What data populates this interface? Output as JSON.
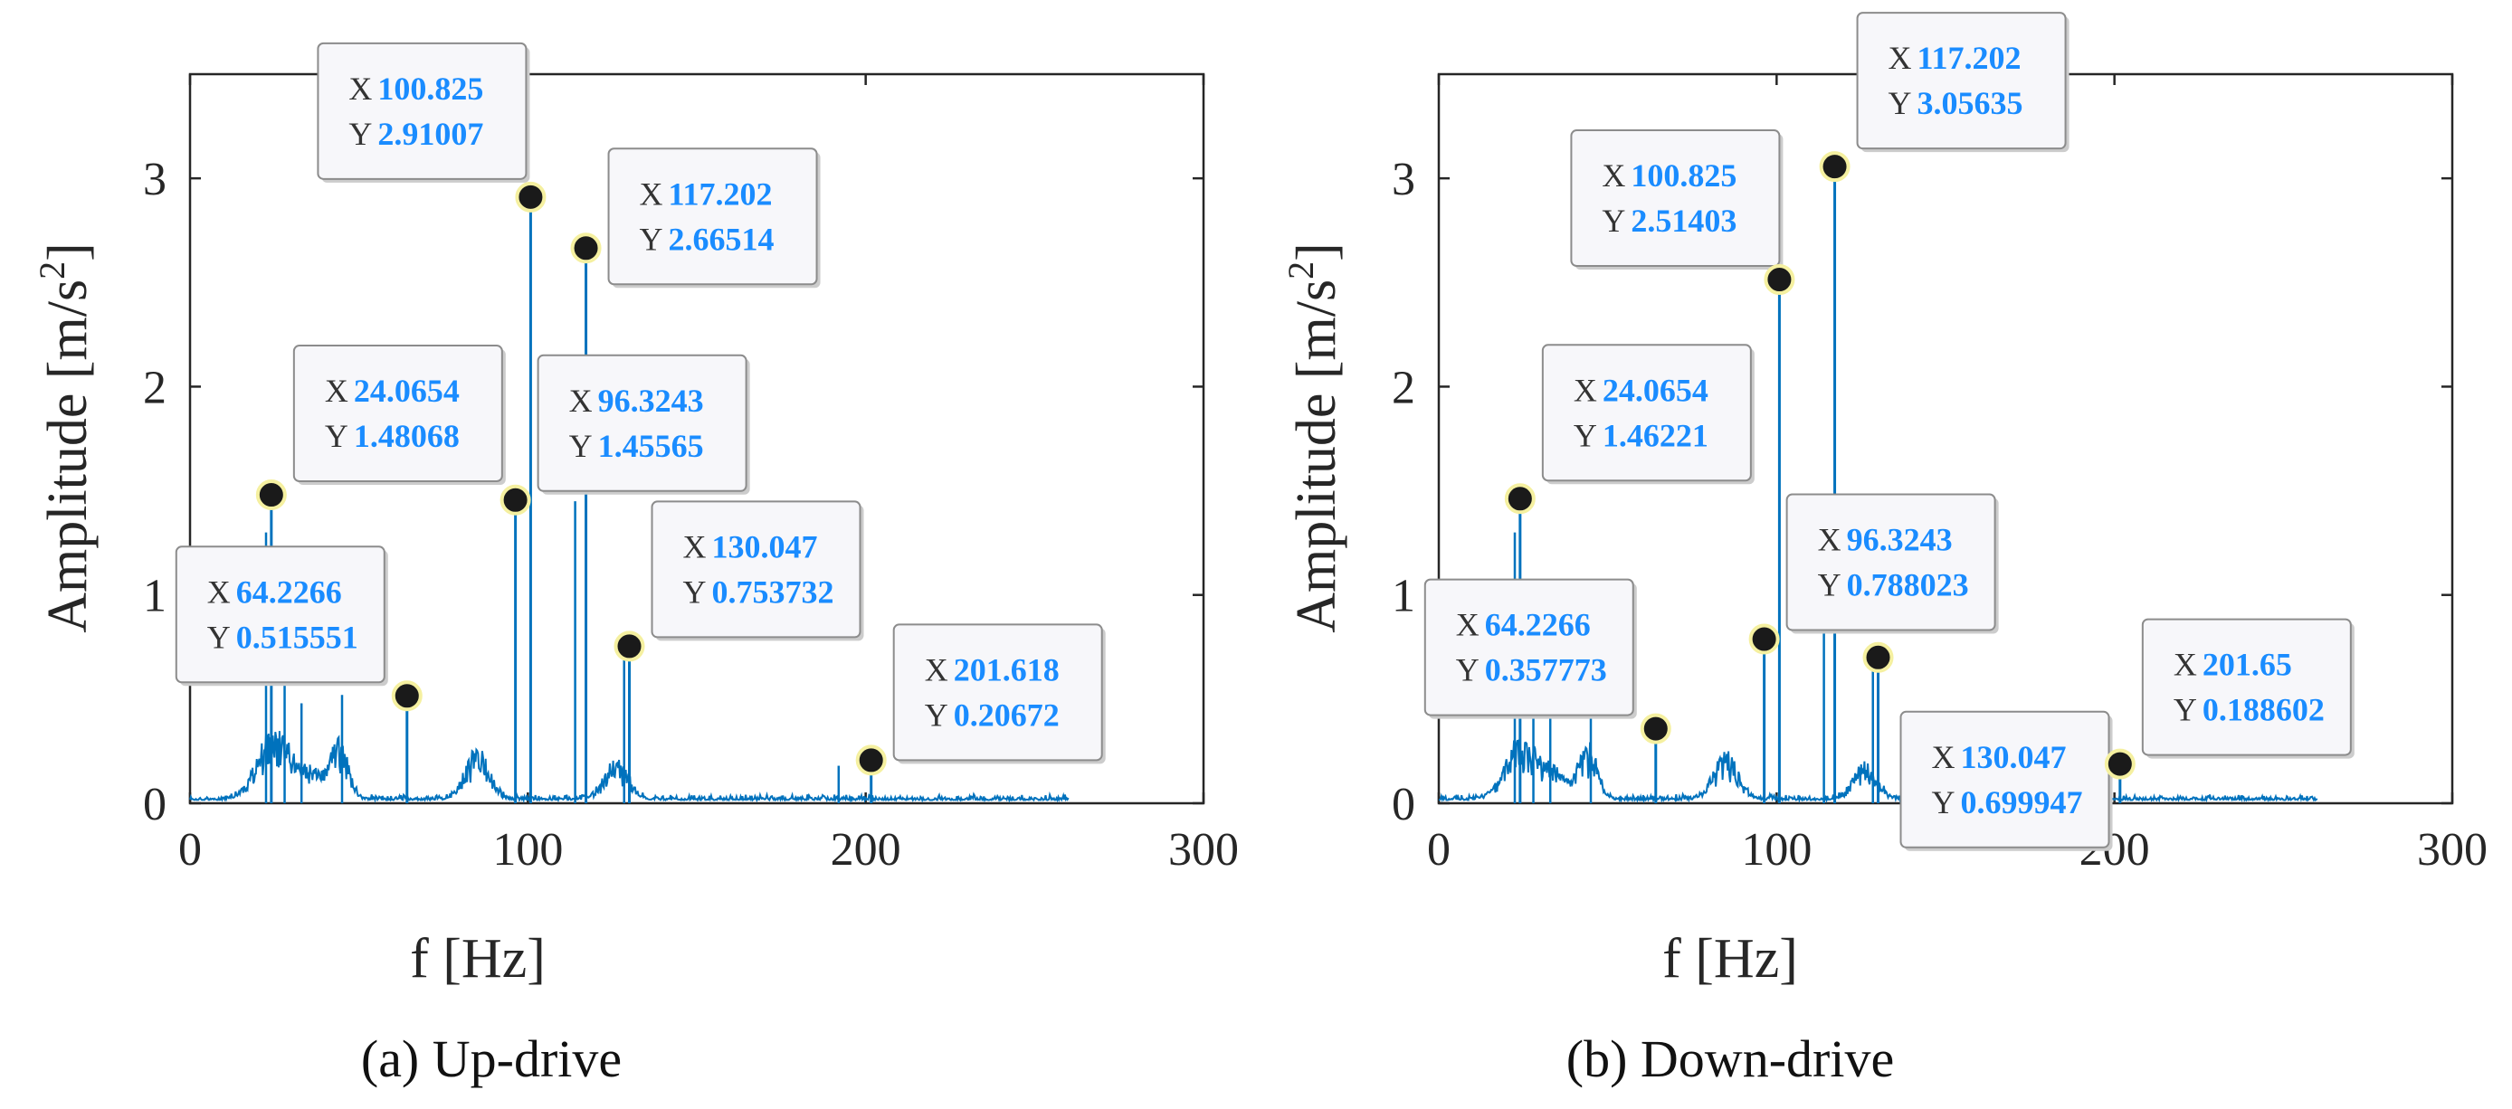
{
  "chart_data": [
    {
      "type": "line",
      "caption": "(a) Up-drive",
      "xlabel": "f [Hz]",
      "ylabel": "Amplitude [m/s",
      "ylabel_exp": "2",
      "ylabel_close": "]",
      "xlim": [
        0,
        300
      ],
      "ylim": [
        0,
        3.5
      ],
      "xticks": [
        0,
        100,
        200,
        300
      ],
      "xtick_labels": [
        "0",
        "100",
        "200",
        "300"
      ],
      "yticks": [
        0,
        1,
        2,
        3
      ],
      "ytick_labels": [
        "0",
        "1",
        "2",
        "3"
      ],
      "series_color": "#0072BD",
      "peaks": [
        {
          "x": 24.0654,
          "y": 1.48068,
          "x_label": "24.0654",
          "y_label": "1.48068"
        },
        {
          "x": 64.2266,
          "y": 0.515551,
          "x_label": "64.2266",
          "y_label": "0.515551"
        },
        {
          "x": 96.3243,
          "y": 1.45565,
          "x_label": "96.3243",
          "y_label": "1.45565"
        },
        {
          "x": 100.825,
          "y": 2.91007,
          "x_label": "100.825",
          "y_label": "2.91007"
        },
        {
          "x": 117.202,
          "y": 2.66514,
          "x_label": "117.202",
          "y_label": "2.66514"
        },
        {
          "x": 130.047,
          "y": 0.753732,
          "x_label": "130.047",
          "y_label": "0.753732"
        },
        {
          "x": 201.618,
          "y": 0.20672,
          "x_label": "201.618",
          "y_label": "0.20672"
        }
      ],
      "extra_lines": [
        {
          "x": 22.5,
          "y": 1.3
        },
        {
          "x": 114.0,
          "y": 1.45
        },
        {
          "x": 128.5,
          "y": 0.72
        },
        {
          "x": 45.0,
          "y": 0.52
        },
        {
          "x": 33.0,
          "y": 0.48
        },
        {
          "x": 28.0,
          "y": 0.62
        },
        {
          "x": 192.0,
          "y": 0.18
        }
      ],
      "bumps": [
        {
          "center": 25,
          "height": 0.36,
          "width": 7
        },
        {
          "center": 44,
          "height": 0.3,
          "width": 4
        },
        {
          "center": 85,
          "height": 0.26,
          "width": 5
        },
        {
          "center": 126,
          "height": 0.2,
          "width": 5
        },
        {
          "center": 35,
          "height": 0.14,
          "width": 5
        }
      ],
      "x_end": 260,
      "tooltips": [
        {
          "peak": 3,
          "side": "left"
        },
        {
          "peak": 4,
          "side": "right"
        },
        {
          "peak": 0,
          "side": "right"
        },
        {
          "peak": 2,
          "side": "right"
        },
        {
          "peak": 1,
          "side": "left"
        },
        {
          "peak": 5,
          "side": "right"
        },
        {
          "peak": 6,
          "side": "right"
        }
      ],
      "tooltip_x_key": "X",
      "tooltip_y_key": "Y"
    },
    {
      "type": "line",
      "caption": "(b) Down-drive",
      "xlabel": "f [Hz]",
      "ylabel": "Amplitude [m/s",
      "ylabel_exp": "2",
      "ylabel_close": "]",
      "xlim": [
        0,
        300
      ],
      "ylim": [
        0,
        3.5
      ],
      "xticks": [
        0,
        100,
        200,
        300
      ],
      "xtick_labels": [
        "0",
        "100",
        "200",
        "300"
      ],
      "yticks": [
        0,
        1,
        2,
        3
      ],
      "ytick_labels": [
        "0",
        "1",
        "2",
        "3"
      ],
      "series_color": "#0072BD",
      "peaks": [
        {
          "x": 24.0654,
          "y": 1.46221,
          "x_label": "24.0654",
          "y_label": "1.46221"
        },
        {
          "x": 64.2266,
          "y": 0.357773,
          "x_label": "64.2266",
          "y_label": "0.357773"
        },
        {
          "x": 96.3243,
          "y": 0.788023,
          "x_label": "96.3243",
          "y_label": "0.788023"
        },
        {
          "x": 100.825,
          "y": 2.51403,
          "x_label": "100.825",
          "y_label": "2.51403"
        },
        {
          "x": 117.202,
          "y": 3.05635,
          "x_label": "117.202",
          "y_label": "3.05635"
        },
        {
          "x": 130.047,
          "y": 0.699947,
          "x_label": "130.047",
          "y_label": "0.699947"
        },
        {
          "x": 201.65,
          "y": 0.188602,
          "x_label": "201.65",
          "y_label": "0.188602"
        }
      ],
      "extra_lines": [
        {
          "x": 22.5,
          "y": 1.3
        },
        {
          "x": 114.0,
          "y": 1.35
        },
        {
          "x": 128.5,
          "y": 0.68
        },
        {
          "x": 45.0,
          "y": 0.45
        },
        {
          "x": 33.0,
          "y": 0.42
        },
        {
          "x": 28.0,
          "y": 0.55
        }
      ],
      "bumps": [
        {
          "center": 25,
          "height": 0.32,
          "width": 7
        },
        {
          "center": 44,
          "height": 0.28,
          "width": 4
        },
        {
          "center": 85,
          "height": 0.24,
          "width": 5
        },
        {
          "center": 126,
          "height": 0.18,
          "width": 5
        },
        {
          "center": 35,
          "height": 0.12,
          "width": 5
        }
      ],
      "x_end": 260,
      "tooltips": [
        {
          "peak": 4,
          "side": "right"
        },
        {
          "peak": 3,
          "side": "left"
        },
        {
          "peak": 0,
          "side": "right"
        },
        {
          "peak": 2,
          "side": "right"
        },
        {
          "peak": 1,
          "side": "left"
        },
        {
          "peak": 5,
          "side": "right"
        },
        {
          "peak": 6,
          "side": "right"
        }
      ],
      "tooltip_x_key": "X",
      "tooltip_y_key": "Y"
    }
  ]
}
